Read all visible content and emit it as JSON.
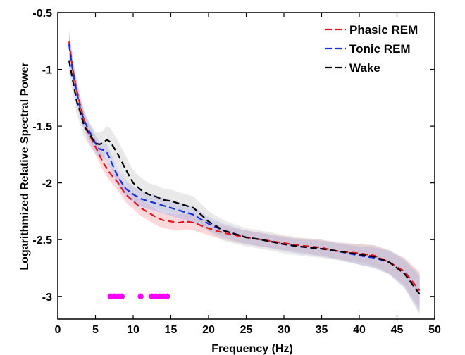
{
  "chart_data": {
    "type": "line",
    "xlabel": "Frequency (Hz)",
    "ylabel": "Logarithmized Relative Spectral Power",
    "xlim": [
      0,
      50
    ],
    "ylim": [
      -3.2,
      -0.5
    ],
    "xticks": [
      0,
      5,
      10,
      15,
      20,
      25,
      30,
      35,
      40,
      45,
      50
    ],
    "yticks": [
      -3,
      -2.5,
      -2,
      -1.5,
      -1,
      -0.5
    ],
    "grid": false,
    "legend_position": "top-right",
    "series": [
      {
        "name": "Phasic REM",
        "color": "#e8141b",
        "band_color": "#f4a0a4",
        "x": [
          1.5,
          2,
          2.5,
          3,
          3.5,
          4,
          5,
          6,
          7,
          8,
          9,
          10,
          11,
          12,
          13,
          14,
          15,
          16,
          17,
          18,
          20,
          22,
          25,
          27,
          30,
          32,
          35,
          37,
          40,
          42,
          44,
          46,
          48
        ],
        "y": [
          -0.75,
          -1.0,
          -1.18,
          -1.32,
          -1.45,
          -1.55,
          -1.68,
          -1.82,
          -1.92,
          -2.0,
          -2.1,
          -2.16,
          -2.22,
          -2.26,
          -2.3,
          -2.33,
          -2.34,
          -2.35,
          -2.34,
          -2.35,
          -2.4,
          -2.44,
          -2.48,
          -2.5,
          -2.53,
          -2.55,
          -2.57,
          -2.6,
          -2.62,
          -2.64,
          -2.7,
          -2.78,
          -2.95
        ],
        "band": [
          0.1,
          0.1,
          0.09,
          0.09,
          0.08,
          0.08,
          0.07,
          0.07,
          0.07,
          0.07,
          0.07,
          0.07,
          0.07,
          0.07,
          0.07,
          0.07,
          0.07,
          0.07,
          0.07,
          0.07,
          0.06,
          0.06,
          0.06,
          0.06,
          0.06,
          0.06,
          0.07,
          0.07,
          0.08,
          0.09,
          0.1,
          0.12,
          0.16
        ]
      },
      {
        "name": "Tonic REM",
        "color": "#1530e0",
        "band_color": "#9aa4ee",
        "x": [
          1.5,
          2,
          2.5,
          3,
          3.5,
          4,
          5,
          5.5,
          6,
          6.5,
          7,
          8,
          9,
          10,
          11,
          12,
          13,
          14,
          15,
          16,
          17,
          18,
          20,
          22,
          25,
          27,
          30,
          32,
          35,
          37,
          40,
          42,
          44,
          46,
          48
        ],
        "y": [
          -0.78,
          -1.02,
          -1.2,
          -1.35,
          -1.45,
          -1.52,
          -1.65,
          -1.7,
          -1.71,
          -1.73,
          -1.8,
          -1.95,
          -2.05,
          -2.1,
          -2.14,
          -2.16,
          -2.18,
          -2.2,
          -2.22,
          -2.24,
          -2.26,
          -2.28,
          -2.36,
          -2.42,
          -2.48,
          -2.5,
          -2.54,
          -2.56,
          -2.58,
          -2.6,
          -2.64,
          -2.66,
          -2.7,
          -2.8,
          -2.98
        ],
        "band": [
          0.1,
          0.1,
          0.09,
          0.09,
          0.08,
          0.08,
          0.07,
          0.07,
          0.07,
          0.07,
          0.07,
          0.07,
          0.07,
          0.07,
          0.07,
          0.07,
          0.07,
          0.07,
          0.07,
          0.07,
          0.07,
          0.07,
          0.06,
          0.06,
          0.06,
          0.06,
          0.06,
          0.06,
          0.07,
          0.07,
          0.08,
          0.09,
          0.1,
          0.12,
          0.16
        ]
      },
      {
        "name": "Wake",
        "color": "#000000",
        "band_color": "#c8c8c8",
        "x": [
          1.5,
          2,
          2.5,
          3,
          3.5,
          4,
          5,
          5.5,
          6,
          6.5,
          7,
          8,
          9,
          10,
          11,
          12,
          13,
          14,
          15,
          16,
          17,
          18,
          20,
          22,
          25,
          27,
          30,
          32,
          35,
          37,
          40,
          42,
          44,
          46,
          48
        ],
        "y": [
          -0.92,
          -1.1,
          -1.28,
          -1.38,
          -1.5,
          -1.55,
          -1.65,
          -1.66,
          -1.65,
          -1.62,
          -1.64,
          -1.75,
          -1.88,
          -2.0,
          -2.06,
          -2.1,
          -2.12,
          -2.15,
          -2.16,
          -2.18,
          -2.2,
          -2.22,
          -2.34,
          -2.42,
          -2.48,
          -2.5,
          -2.54,
          -2.56,
          -2.58,
          -2.6,
          -2.63,
          -2.65,
          -2.7,
          -2.8,
          -2.98
        ],
        "band": [
          0.12,
          0.12,
          0.11,
          0.11,
          0.1,
          0.1,
          0.1,
          0.1,
          0.11,
          0.12,
          0.12,
          0.12,
          0.12,
          0.11,
          0.11,
          0.1,
          0.1,
          0.1,
          0.1,
          0.1,
          0.1,
          0.1,
          0.09,
          0.09,
          0.08,
          0.08,
          0.08,
          0.08,
          0.08,
          0.08,
          0.09,
          0.1,
          0.11,
          0.13,
          0.18
        ]
      }
    ],
    "significance_markers": {
      "color": "#ff00ff",
      "y": -3,
      "x": [
        7,
        7.5,
        8,
        8.5,
        11,
        12.5,
        13,
        13.5,
        14,
        14.5
      ]
    }
  }
}
